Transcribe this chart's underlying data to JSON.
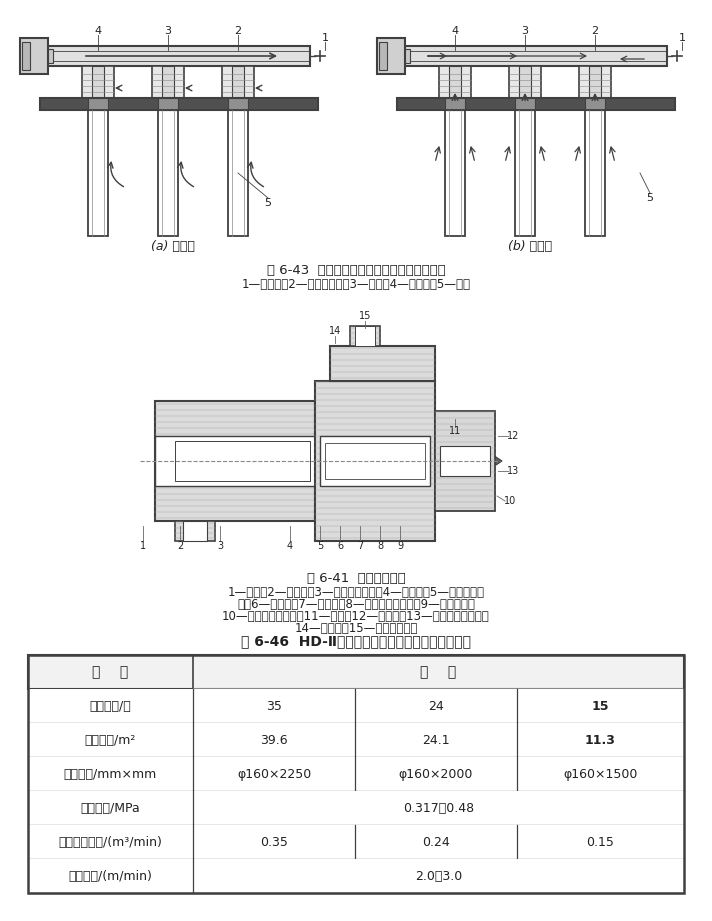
{
  "title_table": "表 6-46  HD-Ⅱ型环隙喷吹脉冲袋式除尘器主要性能",
  "fig1_caption": "图 6-43  环隙喷吹脉冲袋式除尘器的环隙结构",
  "fig1_legend": "1—喷吹管；2—环隙诱导器；3—气包；4—脉冲阀；5—滤袋",
  "fig1_sub_a": "(a) 过滤时",
  "fig1_sub_b": "(b) 清灰时",
  "fig2_caption": "图 6-41  双膜片脉冲阀",
  "fig2_legend_line1": "1—阀体；2—输出口；3—主膜片左侧室；4—主膜片；5—主膜片右侧",
  "fig2_legend_line2": "室；6—中阀体；7—放气口；8—控制膜片左侧室；9—控制膜片；",
  "fig2_legend_line3": "10—控制膜片右侧室；11—阀盖；12—电磁阀；13—控制膜片放气口；",
  "fig2_legend_line4": "14—节流孔；15—压缩空气入口",
  "table_header_col1": "名    称",
  "table_header_col2": "数    量",
  "table_rows": [
    [
      "滤袋数量/只",
      "35",
      "24",
      "15"
    ],
    [
      "过滤面积/m²",
      "39.6",
      "24.1",
      "11.3"
    ],
    [
      "滤袋规格/mm×mm",
      "φ160×2250",
      "φ160×2000",
      "φ160×1500"
    ],
    [
      "噴吹压力/MPa",
      "0.317～0.48",
      "",
      ""
    ],
    [
      "压缩空气耗量/(m³/min)",
      "0.35",
      "0.24",
      "0.15"
    ],
    [
      "过滤风速/(m/min)",
      "2.0～3.0",
      "",
      ""
    ]
  ]
}
